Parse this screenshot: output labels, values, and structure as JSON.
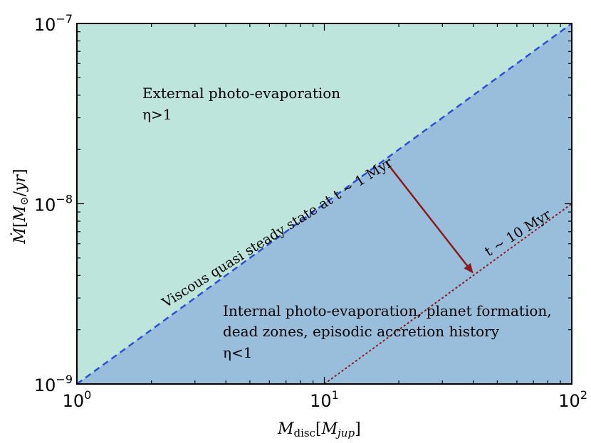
{
  "chart_data": {
    "type": "area",
    "xscale": "log",
    "yscale": "log",
    "xlim": [
      1,
      100
    ],
    "ylim": [
      1e-09,
      1e-07
    ],
    "xlabel": "M_disc[M_jup]",
    "ylabel": "Ṁ[M⊙/yr]",
    "x_ticks": [
      {
        "value": 1,
        "base": "10",
        "exp": "0"
      },
      {
        "value": 10,
        "base": "10",
        "exp": "1"
      },
      {
        "value": 100,
        "base": "10",
        "exp": "2"
      }
    ],
    "y_ticks": [
      {
        "value": 1e-09,
        "base": "10",
        "exp": "−9"
      },
      {
        "value": 1e-08,
        "base": "10",
        "exp": "−8"
      },
      {
        "value": 1e-07,
        "base": "10",
        "exp": "−7"
      }
    ],
    "lines": [
      {
        "label": "Viscous quasi steady state at t ~ 1 Myr",
        "color": "#2b4fd6",
        "style": "dashed",
        "x": [
          1,
          100
        ],
        "y": [
          1e-09,
          1e-07
        ]
      },
      {
        "label": "t ~ 10 Myr",
        "color": "#8b1a1a",
        "style": "dotted",
        "x": [
          10,
          100
        ],
        "y": [
          1e-09,
          1e-08
        ]
      }
    ],
    "regions": [
      {
        "name": "external",
        "color": "#bde5dc",
        "lines": [
          "External photo-evaporation",
          "η>1"
        ]
      },
      {
        "name": "internal",
        "color": "#98bedb",
        "lines": [
          "Internal photo-evaporation, planet formation,",
          "dead zones, episodic accretion history",
          "η<1"
        ]
      }
    ],
    "arrow": {
      "from": {
        "x": 17.8,
        "y": 1.7e-08
      },
      "to": {
        "x": 40,
        "y": 4.1e-09
      },
      "color": "#8b1a1a"
    }
  }
}
